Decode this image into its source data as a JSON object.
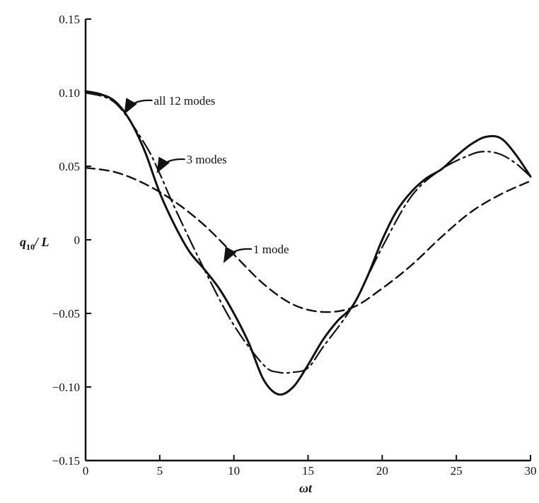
{
  "chart_data": {
    "type": "line",
    "title": "",
    "xlabel": "ωt",
    "ylabel_main": "q",
    "ylabel_sub": "10",
    "ylabel_tail": "/ L",
    "xlim": [
      0,
      30
    ],
    "ylim": [
      -0.15,
      0.15
    ],
    "xticks": [
      0,
      5,
      10,
      15,
      20,
      25,
      30
    ],
    "xtick_labels": [
      "0",
      "5",
      "10",
      "15",
      "20",
      "25",
      "30"
    ],
    "yticks": [
      0.15,
      0.1,
      0.05,
      0,
      -0.05,
      -0.1,
      -0.15
    ],
    "ytick_labels": [
      "0.15",
      "0.10",
      "0.05",
      "0",
      "−0.05",
      "−0.10",
      "−0.15"
    ],
    "grid": false,
    "line_color": "#111111",
    "series": [
      {
        "name": "all 12 modes",
        "style": "solid",
        "x": [
          0,
          1,
          2,
          3,
          4,
          5,
          6,
          7,
          8,
          9,
          10,
          11,
          12,
          13,
          14,
          15,
          16,
          17,
          18,
          19,
          20,
          21,
          22,
          23,
          24,
          25,
          26,
          27,
          28,
          29,
          30
        ],
        "y": [
          0.101,
          0.099,
          0.094,
          0.081,
          0.06,
          0.032,
          0.01,
          -0.008,
          -0.02,
          -0.033,
          -0.05,
          -0.07,
          -0.095,
          -0.105,
          -0.1,
          -0.085,
          -0.068,
          -0.055,
          -0.045,
          -0.025,
          0.0,
          0.02,
          0.033,
          0.042,
          0.048,
          0.057,
          0.065,
          0.07,
          0.069,
          0.058,
          0.043
        ]
      },
      {
        "name": "3 modes",
        "style": "dash-dot",
        "x": [
          0,
          2,
          4,
          5,
          6,
          8,
          10,
          12,
          13,
          14,
          15,
          16,
          18,
          20,
          22,
          24,
          26,
          27,
          28,
          29,
          30
        ],
        "y": [
          0.1,
          0.093,
          0.065,
          0.045,
          0.022,
          -0.02,
          -0.058,
          -0.085,
          -0.09,
          -0.09,
          -0.087,
          -0.073,
          -0.045,
          -0.005,
          0.03,
          0.048,
          0.058,
          0.06,
          0.058,
          0.052,
          0.043
        ]
      },
      {
        "name": "1 mode",
        "style": "dashed",
        "x": [
          0,
          2,
          4,
          6,
          8,
          10,
          12,
          14,
          16,
          18,
          20,
          22,
          24,
          26,
          28,
          30
        ],
        "y": [
          0.049,
          0.046,
          0.038,
          0.026,
          0.01,
          -0.01,
          -0.03,
          -0.044,
          -0.049,
          -0.046,
          -0.033,
          -0.017,
          0.002,
          0.019,
          0.031,
          0.04
        ]
      }
    ],
    "annotations": [
      {
        "text": "all 12 modes",
        "series": "all 12 modes",
        "x": 2.6,
        "y": 0.088
      },
      {
        "text": "3 modes",
        "series": "3 modes",
        "x": 4.8,
        "y": 0.048
      },
      {
        "text": "1 mode",
        "series": "1 mode",
        "x": 9.3,
        "y": -0.013
      }
    ]
  }
}
